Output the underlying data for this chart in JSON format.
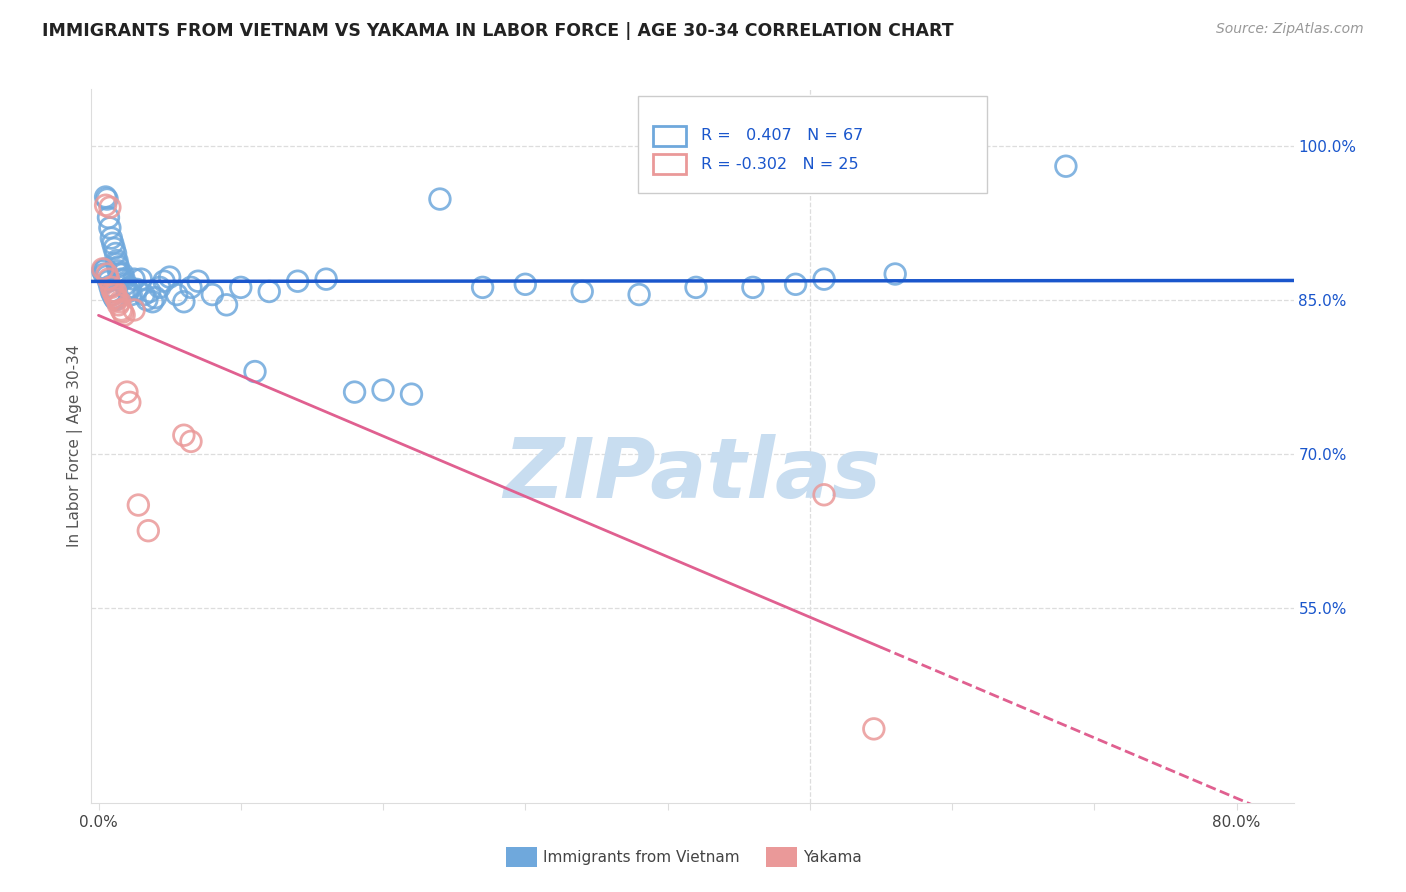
{
  "title": "IMMIGRANTS FROM VIETNAM VS YAKAMA IN LABOR FORCE | AGE 30-34 CORRELATION CHART",
  "source": "Source: ZipAtlas.com",
  "ylabel": "In Labor Force | Age 30-34",
  "blue_label": "Immigrants from Vietnam",
  "pink_label": "Yakama",
  "blue_R": 0.407,
  "blue_N": 67,
  "pink_R": -0.302,
  "pink_N": 25,
  "xlim_min": -0.005,
  "xlim_max": 0.84,
  "ylim_min": 0.36,
  "ylim_max": 1.055,
  "yticks": [
    0.55,
    0.7,
    0.85,
    1.0
  ],
  "ytick_labels": [
    "55.0%",
    "70.0%",
    "85.0%",
    "100.0%"
  ],
  "xticks": [
    0.0,
    0.1,
    0.2,
    0.3,
    0.4,
    0.5,
    0.6,
    0.7,
    0.8
  ],
  "xtick_labels": [
    "0.0%",
    "",
    "",
    "",
    "",
    "",
    "",
    "",
    "80.0%"
  ],
  "blue_color": "#6fa8dc",
  "pink_color": "#ea9999",
  "blue_line_color": "#1a56cc",
  "pink_line_color": "#e06090",
  "watermark": "ZIPatlas",
  "watermark_color": "#c8ddf0",
  "bg_color": "#ffffff",
  "grid_color": "#dddddd",
  "title_color": "#222222",
  "axis_label_color": "#555555",
  "right_axis_color": "#1a56cc",
  "source_color": "#999999",
  "blue_x": [
    0.003,
    0.004,
    0.005,
    0.005,
    0.006,
    0.006,
    0.007,
    0.007,
    0.008,
    0.008,
    0.009,
    0.009,
    0.01,
    0.01,
    0.011,
    0.011,
    0.012,
    0.012,
    0.013,
    0.013,
    0.014,
    0.014,
    0.015,
    0.016,
    0.017,
    0.018,
    0.019,
    0.02,
    0.021,
    0.022,
    0.023,
    0.025,
    0.027,
    0.03,
    0.032,
    0.034,
    0.036,
    0.038,
    0.04,
    0.043,
    0.046,
    0.05,
    0.055,
    0.06,
    0.065,
    0.07,
    0.08,
    0.09,
    0.1,
    0.11,
    0.12,
    0.14,
    0.16,
    0.18,
    0.2,
    0.22,
    0.24,
    0.27,
    0.3,
    0.34,
    0.38,
    0.42,
    0.46,
    0.49,
    0.51,
    0.56,
    0.68
  ],
  "blue_y": [
    0.878,
    0.875,
    0.95,
    0.88,
    0.948,
    0.873,
    0.93,
    0.868,
    0.92,
    0.863,
    0.91,
    0.858,
    0.905,
    0.855,
    0.9,
    0.852,
    0.895,
    0.85,
    0.888,
    0.885,
    0.882,
    0.878,
    0.875,
    0.87,
    0.875,
    0.87,
    0.865,
    0.86,
    0.858,
    0.862,
    0.855,
    0.87,
    0.86,
    0.87,
    0.855,
    0.85,
    0.858,
    0.848,
    0.852,
    0.862,
    0.868,
    0.872,
    0.855,
    0.848,
    0.862,
    0.868,
    0.855,
    0.845,
    0.862,
    0.78,
    0.858,
    0.868,
    0.87,
    0.76,
    0.762,
    0.758,
    0.948,
    0.862,
    0.865,
    0.858,
    0.855,
    0.862,
    0.862,
    0.865,
    0.87,
    0.875,
    0.98
  ],
  "pink_x": [
    0.003,
    0.005,
    0.006,
    0.007,
    0.008,
    0.009,
    0.01,
    0.011,
    0.012,
    0.012,
    0.013,
    0.014,
    0.015,
    0.016,
    0.017,
    0.018,
    0.02,
    0.022,
    0.025,
    0.028,
    0.035,
    0.06,
    0.065,
    0.51,
    0.545
  ],
  "pink_y": [
    0.88,
    0.942,
    0.875,
    0.87,
    0.94,
    0.862,
    0.858,
    0.855,
    0.858,
    0.852,
    0.85,
    0.845,
    0.848,
    0.84,
    0.838,
    0.835,
    0.76,
    0.75,
    0.84,
    0.65,
    0.625,
    0.718,
    0.712,
    0.66,
    0.432
  ]
}
